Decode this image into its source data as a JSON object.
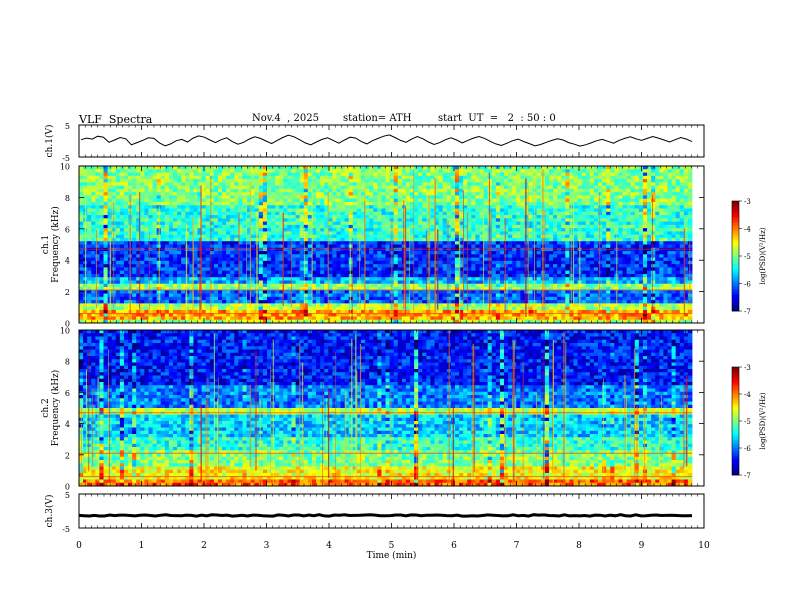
{
  "header": {
    "title": "VLF  Spectra",
    "date": "Nov.4  , 2025",
    "station": "station= ATH",
    "start": "start  UT  =   2  : 50 : 0"
  },
  "chart_data": [
    {
      "type": "line",
      "name": "ch1-waveform",
      "ylabel": "ch.1(V)",
      "ylim": [
        -5,
        5
      ],
      "yticks": [
        "5",
        "-5"
      ],
      "xlim": [
        0,
        10
      ],
      "samples": [
        0.4,
        0.9,
        0.6,
        1.5,
        1.2,
        -0.4,
        0.3,
        1.1,
        0.7,
        -1.2,
        -0.5,
        0.2,
        1.0,
        0.8,
        -0.6,
        -1.5,
        -0.9,
        0.1,
        0.5,
        -0.3,
        0.9,
        1.6,
        1.2,
        0.3,
        -0.5,
        0.4,
        1.0,
        -0.2,
        -1.0,
        -0.4,
        0.6,
        1.3,
        0.8,
        0.0,
        -0.8,
        0.2,
        1.1,
        1.8,
        1.3,
        0.4,
        -0.6,
        -1.2,
        -0.3,
        0.5,
        1.0,
        0.2,
        -0.7,
        0.3,
        1.2,
        0.9,
        -0.2,
        -0.9,
        0.1,
        0.8,
        1.5,
        1.9,
        1.1,
        0.2,
        -0.4,
        0.6,
        1.4,
        0.7,
        -0.3,
        -1.1,
        -0.5,
        0.4,
        1.0,
        0.3,
        -0.6,
        0.2,
        0.9,
        1.4,
        0.8,
        -0.1,
        -0.9,
        -1.4,
        -0.7,
        0.1,
        0.6,
        -0.2,
        -0.8,
        -1.5,
        -1.1,
        -0.4,
        0.2,
        0.7,
        0.3,
        -0.5,
        -1.0,
        -1.6,
        -1.2,
        -0.6,
        0.1,
        0.5,
        -0.1,
        -0.7,
        0.2,
        0.8,
        1.3,
        0.7,
        0.2,
        0.8,
        1.4,
        0.9,
        0.3,
        -0.3,
        0.4,
        1.1,
        0.6,
        -0.2
      ],
      "x": [
        0,
        1,
        2,
        3,
        4,
        5,
        6,
        7,
        8,
        9,
        10
      ]
    },
    {
      "type": "heatmap",
      "name": "ch1-spectrogram",
      "ylabel": "Frequency  (kHz)",
      "channel": "ch.1",
      "ylim": [
        0,
        10
      ],
      "yticks": [
        "0",
        "2",
        "4",
        "6",
        "8",
        "10"
      ],
      "xlim": [
        0,
        10
      ],
      "colorbar": {
        "label": "log(PSD)(V²/Hz)",
        "range": [
          -7,
          -3
        ],
        "ticks": [
          "-3",
          "-4",
          "-5",
          "-6",
          "-7"
        ]
      },
      "bands": [
        {
          "from": 0.0,
          "to": 0.3,
          "level": 0.55
        },
        {
          "from": 0.3,
          "to": 0.9,
          "level": 0.72
        },
        {
          "from": 0.9,
          "to": 1.3,
          "level": 0.55
        },
        {
          "from": 1.3,
          "to": 2.0,
          "level": 0.22
        },
        {
          "from": 2.0,
          "to": 2.4,
          "level": 0.52
        },
        {
          "from": 2.4,
          "to": 3.0,
          "level": 0.3
        },
        {
          "from": 3.0,
          "to": 5.3,
          "level": 0.17
        },
        {
          "from": 5.3,
          "to": 7.5,
          "level": 0.42
        },
        {
          "from": 7.5,
          "to": 10.0,
          "level": 0.5
        }
      ]
    },
    {
      "type": "heatmap",
      "name": "ch2-spectrogram",
      "ylabel": "Frequency  (kHz)",
      "channel": "ch.2",
      "ylim": [
        0,
        10
      ],
      "yticks": [
        "0",
        "2",
        "4",
        "6",
        "8",
        "10"
      ],
      "xlim": [
        0,
        10
      ],
      "colorbar": {
        "label": "log(PSD)(V²/Hz)",
        "range": [
          -7,
          -3
        ],
        "ticks": [
          "-3",
          "-4",
          "-5",
          "-6",
          "-7"
        ]
      },
      "bands": [
        {
          "from": 0.0,
          "to": 0.5,
          "level": 0.78
        },
        {
          "from": 0.5,
          "to": 1.2,
          "level": 0.62
        },
        {
          "from": 1.2,
          "to": 2.2,
          "level": 0.5
        },
        {
          "from": 2.2,
          "to": 3.2,
          "level": 0.42
        },
        {
          "from": 3.2,
          "to": 4.6,
          "level": 0.33
        },
        {
          "from": 4.6,
          "to": 5.0,
          "level": 0.55
        },
        {
          "from": 5.0,
          "to": 6.5,
          "level": 0.25
        },
        {
          "from": 6.5,
          "to": 10.0,
          "level": 0.14
        }
      ]
    },
    {
      "type": "line",
      "name": "ch3-waveform",
      "ylabel": "ch.3(V)",
      "ylim": [
        -5,
        5
      ],
      "yticks": [
        "5",
        "-5"
      ],
      "xlim": [
        0,
        10
      ],
      "level": -1.3
    }
  ],
  "xaxis": {
    "label": "Time  (min)",
    "ticks": [
      "0",
      "1",
      "2",
      "3",
      "4",
      "5",
      "6",
      "7",
      "8",
      "9",
      "10"
    ]
  }
}
